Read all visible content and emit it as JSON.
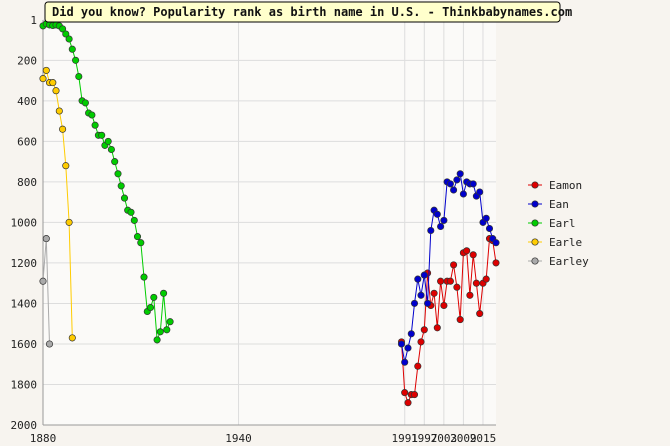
{
  "chart_data": {
    "type": "line",
    "title": "Did you know? Popularity rank as birth name in U.S. - Thinkbabynames.com",
    "xlabel": "",
    "ylabel": "",
    "xlim": [
      1880,
      2019
    ],
    "ylim": [
      2000,
      1
    ],
    "y_inverted": true,
    "grid": true,
    "legend_position": "right",
    "x_ticks": [
      1880,
      1940,
      1991,
      1997,
      2003,
      2009,
      2015
    ],
    "x_tick_labels": [
      "1880",
      "1940",
      "1991",
      "1997",
      "2003",
      "2009",
      "2015"
    ],
    "y_ticks": [
      1,
      200,
      400,
      600,
      800,
      1000,
      1200,
      1400,
      1600,
      1800,
      2000
    ],
    "y_tick_labels": [
      "1",
      "200",
      "400",
      "600",
      "800",
      "1000",
      "1200",
      "1400",
      "1600",
      "1800",
      "2000"
    ],
    "series": [
      {
        "name": "Eamon",
        "color": "#dd0000",
        "x": [
          1990,
          1991,
          1992,
          1993,
          1994,
          1995,
          1996,
          1997,
          1998,
          1999,
          2000,
          2001,
          2002,
          2003,
          2004,
          2005,
          2006,
          2007,
          2008,
          2009,
          2010,
          2011,
          2012,
          2013,
          2014,
          2015,
          2016,
          2017,
          2018,
          2019
        ],
        "y": [
          1590,
          1840,
          1890,
          1850,
          1850,
          1710,
          1590,
          1530,
          1250,
          1410,
          1350,
          1520,
          1290,
          1410,
          1290,
          1290,
          1210,
          1320,
          1480,
          1150,
          1140,
          1360,
          1160,
          1300,
          1450,
          1300,
          1280,
          1080,
          1090,
          1200
        ]
      },
      {
        "name": "Ean",
        "color": "#0000cc",
        "x": [
          1990,
          1991,
          1992,
          1993,
          1994,
          1995,
          1996,
          1997,
          1998,
          1999,
          2000,
          2001,
          2002,
          2003,
          2004,
          2005,
          2006,
          2007,
          2008,
          2009,
          2010,
          2011,
          2012,
          2013,
          2014,
          2015,
          2016,
          2017,
          2018,
          2019
        ],
        "y": [
          1600,
          1690,
          1620,
          1550,
          1400,
          1280,
          1360,
          1260,
          1400,
          1040,
          940,
          960,
          1020,
          990,
          800,
          810,
          840,
          790,
          760,
          860,
          800,
          810,
          810,
          870,
          850,
          1000,
          980,
          1030,
          1080,
          1100
        ]
      },
      {
        "name": "Earl",
        "color": "#00cc00",
        "x": [
          1880,
          1881,
          1882,
          1883,
          1884,
          1885,
          1886,
          1887,
          1888,
          1889,
          1890,
          1891,
          1892,
          1893,
          1894,
          1895,
          1896,
          1897,
          1898,
          1899,
          1900,
          1901,
          1902,
          1903,
          1904,
          1905,
          1906,
          1907,
          1908,
          1909,
          1910,
          1911,
          1912,
          1913,
          1914,
          1915,
          1916,
          1917,
          1918,
          1919
        ],
        "y": [
          30,
          20,
          25,
          28,
          25,
          30,
          45,
          70,
          95,
          145,
          200,
          280,
          400,
          410,
          460,
          470,
          520,
          570,
          570,
          620,
          600,
          640,
          700,
          760,
          820,
          880,
          940,
          950,
          990,
          1070,
          1100,
          1270,
          1440,
          1420,
          1370,
          1580,
          1540,
          1350,
          1530,
          1490
        ]
      },
      {
        "name": "Earle",
        "color": "#ffcc00",
        "x": [
          1880,
          1881,
          1882,
          1883,
          1884,
          1885,
          1886,
          1887,
          1888,
          1889
        ],
        "y": [
          290,
          250,
          310,
          310,
          350,
          450,
          540,
          720,
          1000,
          1570
        ]
      },
      {
        "name": "Earley",
        "color": "#aaaaaa",
        "x": [
          1880,
          1881,
          1882
        ],
        "y": [
          1290,
          1080,
          1600
        ]
      }
    ]
  }
}
